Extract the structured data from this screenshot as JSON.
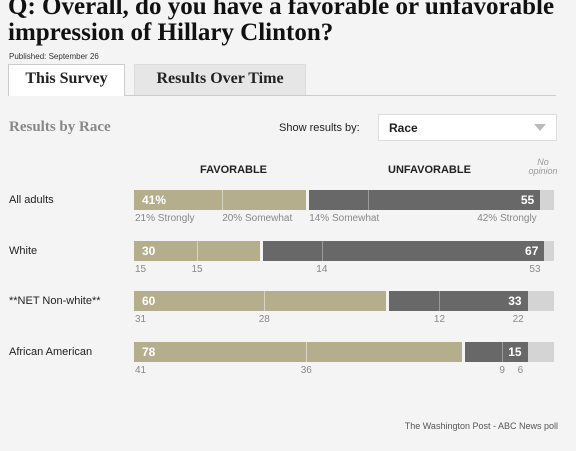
{
  "question": "Q: Overall, do you have a favorable or unfavorable impression of Hillary Clinton?",
  "published": "Published: September 26",
  "tabs": [
    {
      "label": "This Survey",
      "active": true
    },
    {
      "label": "Results Over Time",
      "active": false
    }
  ],
  "section_title": "Results by Race",
  "show_results_label": "Show results by:",
  "show_results_value": "Race",
  "columns": {
    "favorable": "FAVORABLE",
    "unfavorable": "UNFAVORABLE",
    "no_opinion": "No opinion"
  },
  "colors": {
    "favorable": "#b5ae8d",
    "unfavorable": "#686868",
    "no_opinion": "#d4d4d4"
  },
  "rows": [
    {
      "label": "All adults",
      "favorable": "41%",
      "unfavorable": "55",
      "sub": [
        "21% Strongly",
        "20% Somewhat",
        "14% Somewhat",
        "42% Strongly"
      ]
    },
    {
      "label": "White",
      "favorable": "30",
      "unfavorable": "67",
      "sub": [
        "15",
        "15",
        "14",
        "53"
      ]
    },
    {
      "label": "**NET Non-white**",
      "favorable": "60",
      "unfavorable": "33",
      "sub": [
        "31",
        "28",
        "12",
        "22"
      ]
    },
    {
      "label": "African American",
      "favorable": "78",
      "unfavorable": "15",
      "sub": [
        "41",
        "36",
        "9",
        "6"
      ]
    }
  ],
  "chart_data": {
    "type": "bar",
    "categories": [
      "All adults",
      "White",
      "**NET Non-white**",
      "African American"
    ],
    "series": [
      {
        "name": "FAVORABLE",
        "values": [
          41,
          30,
          60,
          78
        ],
        "strongly": [
          21,
          15,
          31,
          41
        ],
        "somewhat": [
          20,
          15,
          28,
          36
        ]
      },
      {
        "name": "UNFAVORABLE",
        "values": [
          55,
          67,
          33,
          15
        ],
        "somewhat": [
          14,
          14,
          12,
          9
        ],
        "strongly": [
          42,
          53,
          22,
          6
        ]
      },
      {
        "name": "No opinion",
        "values": [
          4,
          3,
          7,
          7
        ]
      }
    ],
    "stacked": true
  },
  "footer": "The Washington Post - ABC News poll"
}
